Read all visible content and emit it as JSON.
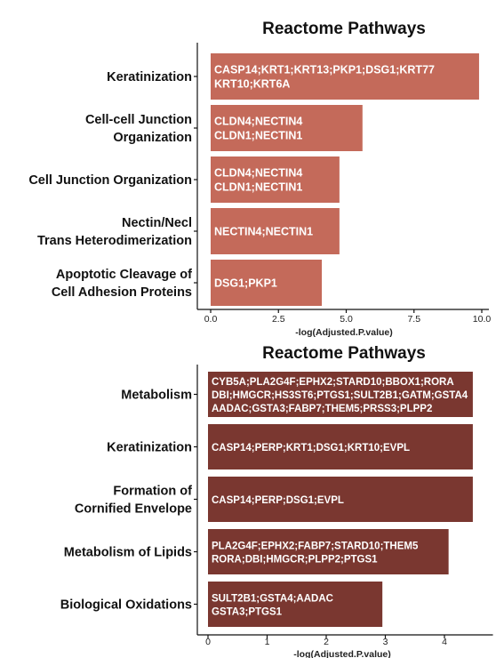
{
  "chart_data": [
    {
      "type": "bar",
      "orientation": "horizontal",
      "title": "Reactome Pathways",
      "xlabel": "-log(Adjusted.P.value)",
      "xlim": [
        0,
        10
      ],
      "xticks": [
        "0.0",
        "2.5",
        "5.0",
        "7.5",
        "10.0"
      ],
      "bar_color": "#c46a5a",
      "grid": false,
      "categories": [
        [
          "Keratinization"
        ],
        [
          "Cell-cell Junction",
          "Organization"
        ],
        [
          "Cell Junction Organization"
        ],
        [
          "Nectin/Necl",
          "Trans Heterodimerization"
        ],
        [
          "Apoptotic Cleavage of",
          "Cell Adhesion Proteins"
        ]
      ],
      "values": [
        9.9,
        5.6,
        4.75,
        4.75,
        4.1
      ],
      "bar_labels": [
        [
          "CASP14;KRT1;KRT13;PKP1;DSG1;KRT77",
          "KRT10;KRT6A"
        ],
        [
          "CLDN4;NECTIN4",
          "CLDN1;NECTIN1"
        ],
        [
          "CLDN4;NECTIN4",
          "CLDN1;NECTIN1"
        ],
        [
          "NECTIN4;NECTIN1"
        ],
        [
          "DSG1;PKP1"
        ]
      ]
    },
    {
      "type": "bar",
      "orientation": "horizontal",
      "title": "Reactome Pathways",
      "xlabel": "-log(Adjusted.P.value)",
      "xlim": [
        0,
        4.7
      ],
      "xticks": [
        "0",
        "1",
        "2",
        "3",
        "4"
      ],
      "bar_color": "#7a3730",
      "grid": false,
      "categories": [
        [
          "Metabolism"
        ],
        [
          "Keratinization"
        ],
        [
          "Formation of",
          "Cornified Envelope"
        ],
        [
          "Metabolism of Lipids"
        ],
        [
          "Biological Oxidations"
        ]
      ],
      "values": [
        4.48,
        4.48,
        4.48,
        4.07,
        2.95
      ],
      "bar_labels": [
        [
          "CYB5A;PLA2G4F;EPHX2;STARD10;BBOX1;RORA",
          "DBI;HMGCR;HS3ST6;PTGS1;SULT2B1;GATM;GSTA4",
          "AADAC;GSTA3;FABP7;THEM5;PRSS3;PLPP2"
        ],
        [
          "CASP14;PERP;KRT1;DSG1;KRT10;EVPL"
        ],
        [
          "CASP14;PERP;DSG1;EVPL"
        ],
        [
          "PLA2G4F;EPHX2;FABP7;STARD10;THEM5",
          "RORA;DBI;HMGCR;PLPP2;PTGS1"
        ],
        [
          "SULT2B1;GSTA4;AADAC",
          "GSTA3;PTGS1"
        ]
      ]
    }
  ]
}
